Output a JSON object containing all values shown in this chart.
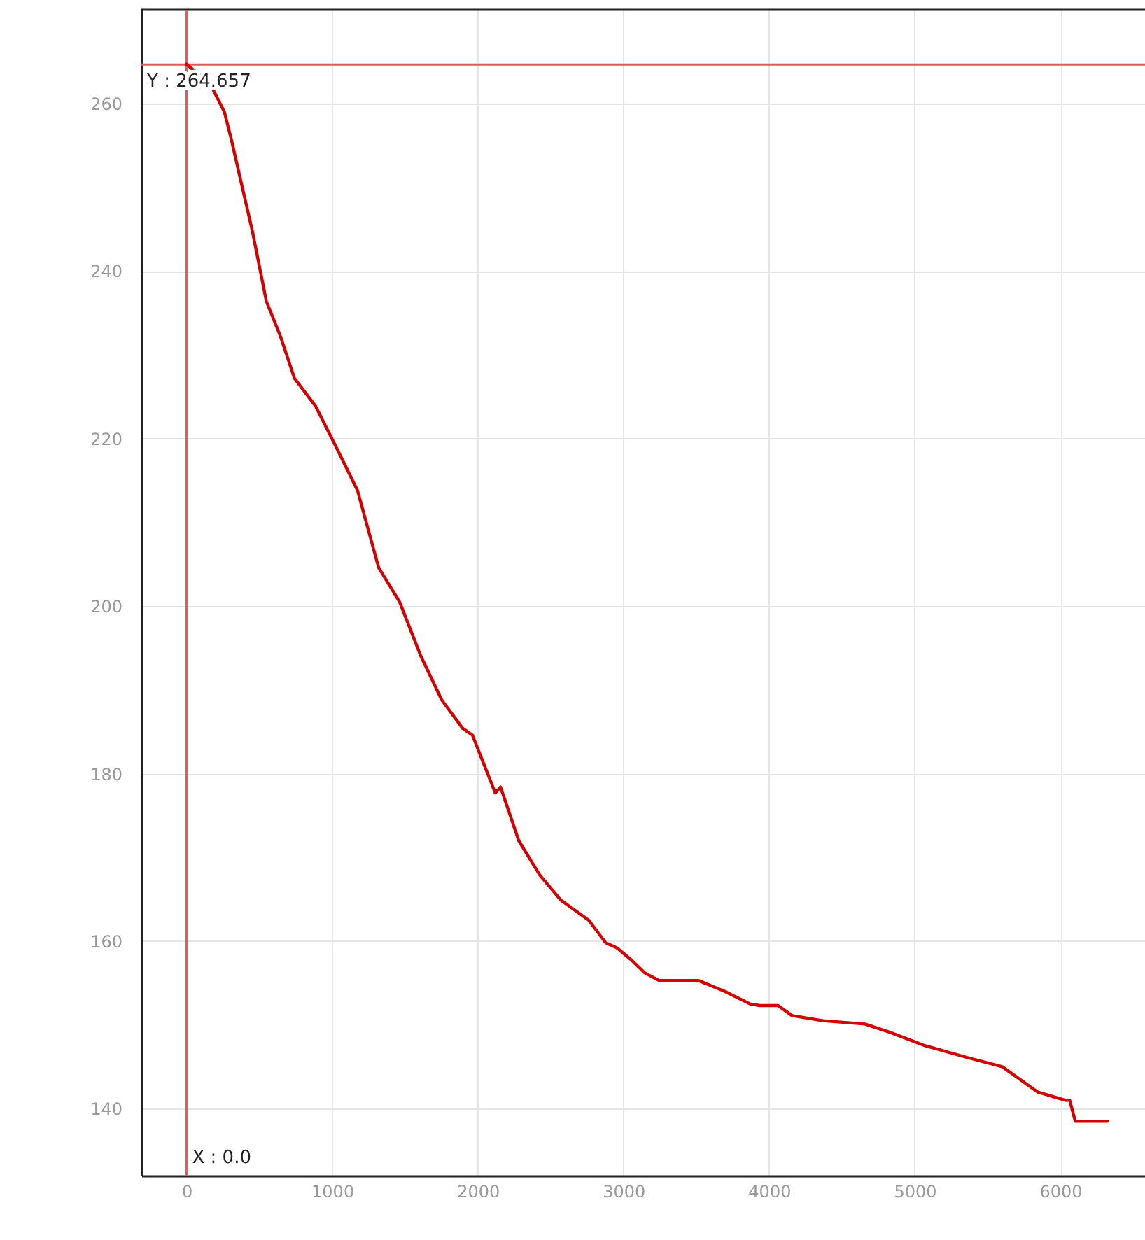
{
  "chart_data": {
    "type": "line",
    "x": [
      0,
      164,
      260,
      308,
      375,
      452,
      548,
      645,
      741,
      885,
      1030,
      1174,
      1319,
      1463,
      1607,
      1752,
      1896,
      1963,
      2040,
      2108,
      2120,
      2156,
      2281,
      2425,
      2570,
      2762,
      2878,
      2955,
      3051,
      3147,
      3244,
      3513,
      3696,
      3869,
      3936,
      4062,
      4158,
      4370,
      4658,
      4832,
      5072,
      5361,
      5601,
      5842,
      6035,
      6064,
      6102,
      6323
    ],
    "series": [
      {
        "color": "#d40000",
        "values": [
          264.7,
          262.3,
          259.0,
          255.7,
          250.6,
          244.8,
          236.4,
          232.2,
          227.2,
          223.9,
          218.9,
          213.8,
          204.6,
          200.5,
          194.1,
          188.8,
          185.4,
          184.6,
          181.2,
          178.2,
          177.7,
          178.4,
          172.0,
          167.9,
          164.9,
          162.5,
          159.8,
          159.2,
          157.8,
          156.2,
          155.3,
          155.3,
          154.0,
          152.5,
          152.3,
          152.3,
          151.1,
          150.5,
          150.1,
          149.1,
          147.5,
          146.1,
          145.0,
          142.0,
          141.0,
          141.0,
          138.5,
          138.5
        ]
      }
    ],
    "xlim": [
      -310,
      6610
    ],
    "ylim": [
      132,
      271.2
    ],
    "xticks": [
      0,
      1000,
      2000,
      3000,
      4000,
      5000,
      6000
    ],
    "yticks": [
      140,
      160,
      180,
      200,
      220,
      240,
      260
    ],
    "grid": true,
    "line_style": "solid",
    "marker": "none",
    "ref_lines": [
      {
        "axis": "x",
        "value": 0,
        "label": "X : 0.0",
        "color": "#e8585a"
      },
      {
        "axis": "y",
        "value": 264.657,
        "label": "Y : 264.657",
        "color": "#e8585a"
      }
    ]
  }
}
